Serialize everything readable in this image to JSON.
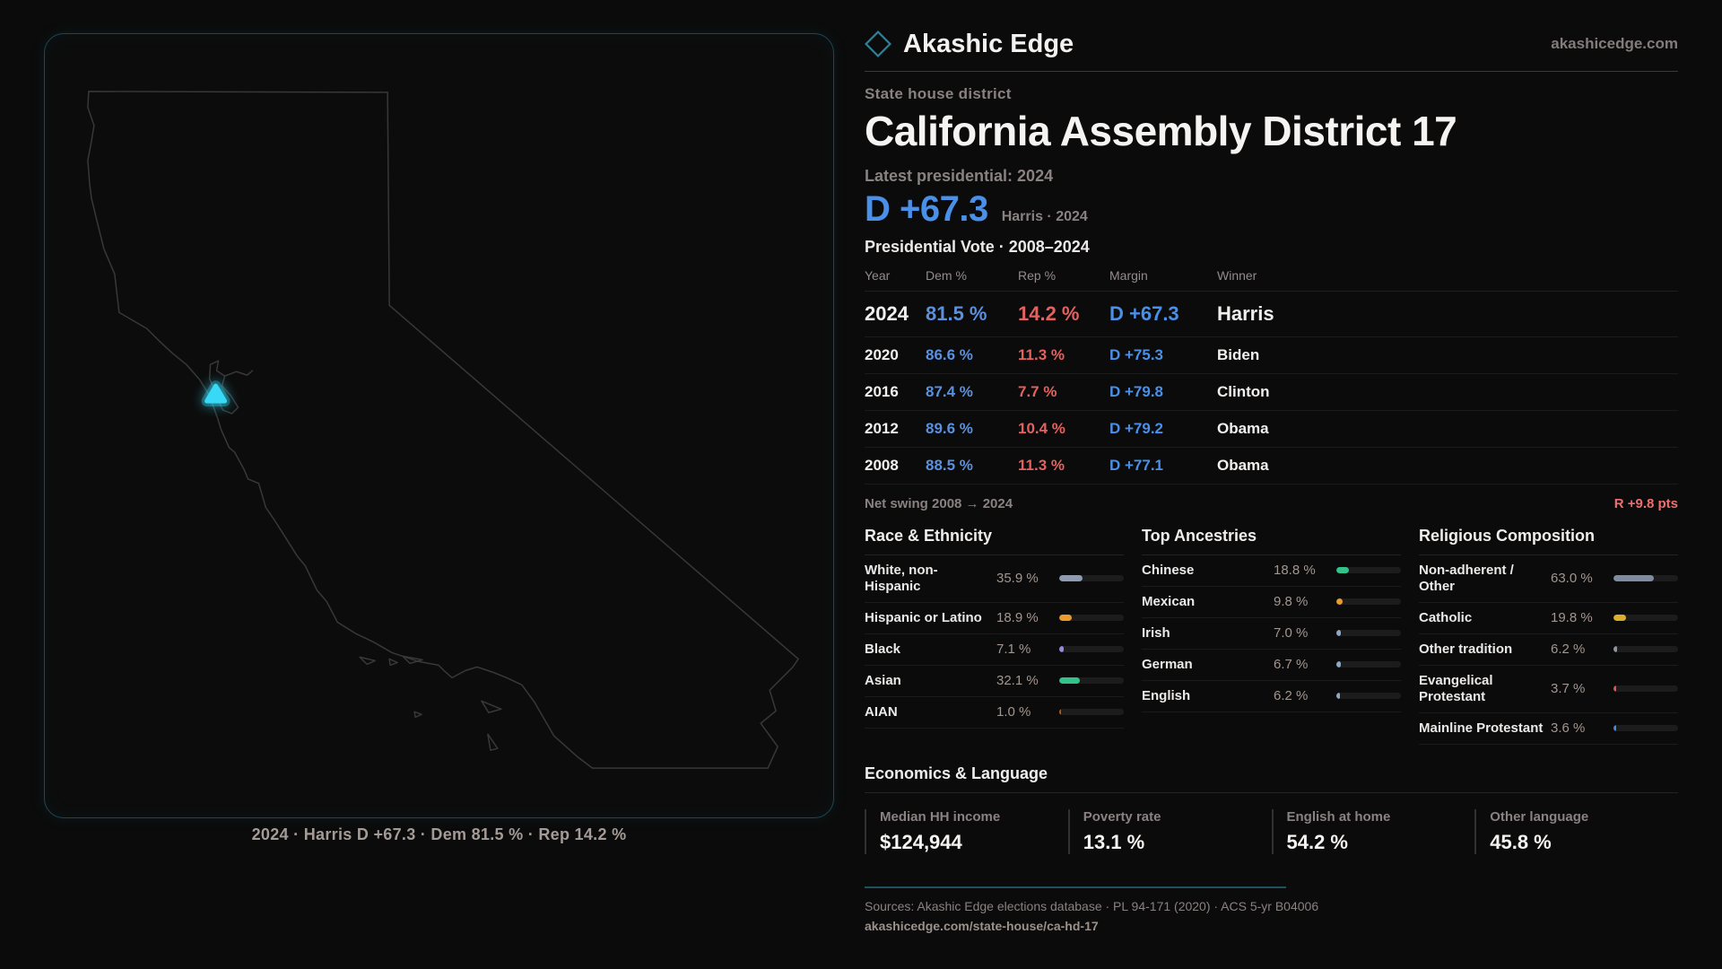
{
  "brand": {
    "name": "Akashic Edge",
    "domain": "akashicedge.com",
    "diamond_color": "#2f8099"
  },
  "page": {
    "kicker": "State house district",
    "title": "California Assembly District 17",
    "latest_label": "Latest presidential: 2024",
    "headline_margin": "D +67.3",
    "headline_context": "Harris · 2024"
  },
  "vote_table": {
    "title": "Presidential Vote · 2008–2024",
    "columns": {
      "year": "Year",
      "dem": "Dem %",
      "rep": "Rep %",
      "margin": "Margin",
      "winner": "Winner"
    },
    "rows": [
      {
        "year": "2024",
        "dem": "81.5 %",
        "rep": "14.2 %",
        "margin": "D +67.3",
        "winner": "Harris"
      },
      {
        "year": "2020",
        "dem": "86.6 %",
        "rep": "11.3 %",
        "margin": "D +75.3",
        "winner": "Biden"
      },
      {
        "year": "2016",
        "dem": "87.4 %",
        "rep": "7.7 %",
        "margin": "D +79.8",
        "winner": "Clinton"
      },
      {
        "year": "2012",
        "dem": "89.6 %",
        "rep": "10.4 %",
        "margin": "D +79.2",
        "winner": "Obama"
      },
      {
        "year": "2008",
        "dem": "88.5 %",
        "rep": "11.3 %",
        "margin": "D +77.1",
        "winner": "Obama"
      }
    ],
    "net_swing_label": "Net swing 2008 → 2024",
    "net_swing_value": "R +9.8 pts"
  },
  "demographics": {
    "sections": [
      {
        "title": "Race & Ethnicity",
        "items": [
          {
            "label": "White, non-Hispanic",
            "value": "35.9 %",
            "pct": 35.9,
            "color": "#8d9cb4"
          },
          {
            "label": "Hispanic or Latino",
            "value": "18.9 %",
            "pct": 18.9,
            "color": "#e99b2d"
          },
          {
            "label": "Black",
            "value": "7.1 %",
            "pct": 7.1,
            "color": "#9d85e6"
          },
          {
            "label": "Asian",
            "value": "32.1 %",
            "pct": 32.1,
            "color": "#33c289"
          },
          {
            "label": "AIAN",
            "value": "1.0 %",
            "pct": 1.0,
            "color": "#b05e1d"
          }
        ]
      },
      {
        "title": "Top Ancestries",
        "items": [
          {
            "label": "Chinese",
            "value": "18.8 %",
            "pct": 18.8,
            "color": "#33c289"
          },
          {
            "label": "Mexican",
            "value": "9.8 %",
            "pct": 9.8,
            "color": "#e99b2d"
          },
          {
            "label": "Irish",
            "value": "7.0 %",
            "pct": 7.0,
            "color": "#8fa8c2"
          },
          {
            "label": "German",
            "value": "6.7 %",
            "pct": 6.7,
            "color": "#8fa8c2"
          },
          {
            "label": "English",
            "value": "6.2 %",
            "pct": 6.2,
            "color": "#8fa8c2"
          }
        ]
      },
      {
        "title": "Religious Composition",
        "items": [
          {
            "label": "Non-adherent / Other",
            "value": "63.0 %",
            "pct": 63.0,
            "color": "#7e8ca1"
          },
          {
            "label": "Catholic",
            "value": "19.8 %",
            "pct": 19.8,
            "color": "#d9ae2e"
          },
          {
            "label": "Other tradition",
            "value": "6.2 %",
            "pct": 6.2,
            "color": "#8d949c"
          },
          {
            "label": "Evangelical Protestant",
            "value": "3.7 %",
            "pct": 3.7,
            "color": "#e0564e"
          },
          {
            "label": "Mainline Protestant",
            "value": "3.6 %",
            "pct": 3.6,
            "color": "#3f8be0"
          }
        ]
      }
    ]
  },
  "economics": {
    "title": "Economics & Language",
    "stats": [
      {
        "label": "Median HH income",
        "value": "$124,944"
      },
      {
        "label": "Poverty rate",
        "value": "13.1 %"
      },
      {
        "label": "English at home",
        "value": "54.2 %"
      },
      {
        "label": "Other language",
        "value": "45.8 %"
      }
    ]
  },
  "map": {
    "caption": "2024 · Harris D +67.3 · Dem 81.5 % · Rep 14.2 %",
    "marker_color": "#38d9f6",
    "outline_color": "#383838"
  },
  "footer": {
    "sources": "Sources: Akashic Edge elections database · PL 94-171 (2020) · ACS 5-yr B04006",
    "permalink": "akashicedge.com/state-house/ca-hd-17"
  }
}
